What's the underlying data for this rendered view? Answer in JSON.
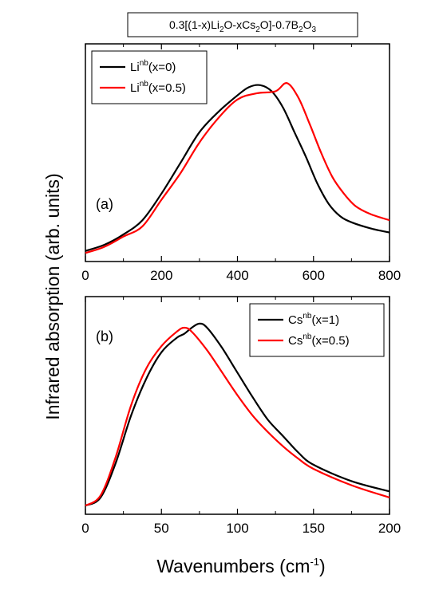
{
  "title": {
    "segments": [
      {
        "t": "0.3[(1-x)Li",
        "s": ""
      },
      {
        "t": "2",
        "s": "sub"
      },
      {
        "t": "O-xCs",
        "s": ""
      },
      {
        "t": "2",
        "s": "sub"
      },
      {
        "t": "O]-0.7B",
        "s": ""
      },
      {
        "t": "2",
        "s": "sub"
      },
      {
        "t": "O",
        "s": ""
      },
      {
        "t": "3",
        "s": "sub"
      }
    ]
  },
  "ylabel": "Infrared absorption (arb. units)",
  "xlabel": {
    "main": "Wavenumbers (cm",
    "sup": "-1",
    "close": ")"
  },
  "chart_data": [
    {
      "type": "line",
      "panel_label": "(a)",
      "xlim": [
        0,
        800
      ],
      "ylim": [
        0,
        1
      ],
      "xticks": [
        0,
        200,
        400,
        600,
        800
      ],
      "xtick_labels": [
        "0",
        "200",
        "400",
        "600",
        "800"
      ],
      "yticks_visible": false,
      "grid": false,
      "legend_position": "top-left",
      "series": [
        {
          "name_base": "Li",
          "name_sup": "nb",
          "name_rest": "(x=0)",
          "color": "#000000",
          "points": [
            [
              0,
              0.02
            ],
            [
              50,
              0.05
            ],
            [
              100,
              0.1
            ],
            [
              150,
              0.17
            ],
            [
              200,
              0.3
            ],
            [
              250,
              0.45
            ],
            [
              300,
              0.6
            ],
            [
              350,
              0.7
            ],
            [
              400,
              0.78
            ],
            [
              430,
              0.82
            ],
            [
              460,
              0.83
            ],
            [
              490,
              0.8
            ],
            [
              520,
              0.72
            ],
            [
              550,
              0.6
            ],
            [
              580,
              0.48
            ],
            [
              610,
              0.35
            ],
            [
              640,
              0.25
            ],
            [
              670,
              0.19
            ],
            [
              700,
              0.16
            ],
            [
              750,
              0.13
            ],
            [
              800,
              0.11
            ]
          ]
        },
        {
          "name_base": "Li",
          "name_sup": "nb",
          "name_rest": "(x=0.5)",
          "color": "#ff0000",
          "points": [
            [
              0,
              0.01
            ],
            [
              50,
              0.04
            ],
            [
              100,
              0.09
            ],
            [
              150,
              0.14
            ],
            [
              200,
              0.27
            ],
            [
              250,
              0.4
            ],
            [
              300,
              0.55
            ],
            [
              350,
              0.67
            ],
            [
              400,
              0.76
            ],
            [
              450,
              0.79
            ],
            [
              500,
              0.8
            ],
            [
              530,
              0.84
            ],
            [
              560,
              0.77
            ],
            [
              590,
              0.64
            ],
            [
              620,
              0.5
            ],
            [
              650,
              0.38
            ],
            [
              680,
              0.3
            ],
            [
              710,
              0.24
            ],
            [
              750,
              0.2
            ],
            [
              800,
              0.17
            ]
          ]
        }
      ]
    },
    {
      "type": "line",
      "panel_label": "(b)",
      "xlim": [
        0,
        200
      ],
      "ylim": [
        0,
        1
      ],
      "xticks": [
        0,
        50,
        100,
        150,
        200
      ],
      "xtick_labels": [
        "0",
        "50",
        "100",
        "150",
        "200"
      ],
      "yticks_visible": false,
      "grid": false,
      "legend_position": "top-right",
      "series": [
        {
          "name_base": "Cs",
          "name_sup": "nb",
          "name_rest": "(x=1)",
          "color": "#000000",
          "points": [
            [
              0,
              0.01
            ],
            [
              10,
              0.05
            ],
            [
              20,
              0.22
            ],
            [
              30,
              0.45
            ],
            [
              40,
              0.63
            ],
            [
              50,
              0.76
            ],
            [
              60,
              0.83
            ],
            [
              65,
              0.85
            ],
            [
              70,
              0.88
            ],
            [
              75,
              0.9
            ],
            [
              80,
              0.88
            ],
            [
              90,
              0.78
            ],
            [
              100,
              0.66
            ],
            [
              110,
              0.54
            ],
            [
              120,
              0.43
            ],
            [
              130,
              0.35
            ],
            [
              140,
              0.27
            ],
            [
              150,
              0.21
            ],
            [
              175,
              0.13
            ],
            [
              200,
              0.08
            ]
          ]
        },
        {
          "name_base": "Cs",
          "name_sup": "nb",
          "name_rest": "(x=0.5)",
          "color": "#ff0000",
          "points": [
            [
              0,
              0.01
            ],
            [
              10,
              0.06
            ],
            [
              20,
              0.25
            ],
            [
              30,
              0.5
            ],
            [
              40,
              0.68
            ],
            [
              50,
              0.79
            ],
            [
              60,
              0.86
            ],
            [
              65,
              0.88
            ],
            [
              70,
              0.86
            ],
            [
              80,
              0.77
            ],
            [
              90,
              0.66
            ],
            [
              100,
              0.55
            ],
            [
              110,
              0.45
            ],
            [
              120,
              0.37
            ],
            [
              130,
              0.3
            ],
            [
              140,
              0.24
            ],
            [
              150,
              0.19
            ],
            [
              175,
              0.11
            ],
            [
              200,
              0.05
            ]
          ]
        }
      ]
    }
  ]
}
